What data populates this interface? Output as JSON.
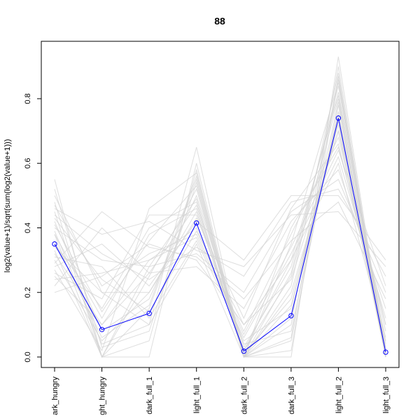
{
  "chart_data": {
    "type": "line",
    "title": "88",
    "xlabel": "",
    "ylabel": "log2(value+1)/sqrt(sum(log2(value+1)))",
    "categories": [
      "dark_hungry",
      "light_hungry",
      "dark_full_1",
      "light_full_1",
      "dark_full_2",
      "dark_full_3",
      "light_full_2",
      "light_full_3"
    ],
    "category_labels_shown": [
      "ark_hungry",
      "ght_hungry",
      "dark_full_1",
      "light_full_1",
      "dark_full_2",
      "dark_full_3",
      "light_full_2",
      "light_full_3"
    ],
    "ylim": [
      0.0,
      0.92
    ],
    "yticks": [
      0.0,
      0.2,
      0.4,
      0.6,
      0.8
    ],
    "ytick_labels": [
      "0.0",
      "0.2",
      "0.4",
      "0.6",
      "0.8"
    ],
    "highlight_series": {
      "values": [
        0.35,
        0.085,
        0.135,
        0.415,
        0.018,
        0.128,
        0.74,
        0.015
      ]
    },
    "background_series": [
      [
        0.38,
        0.0,
        0.25,
        0.52,
        0.0,
        0.2,
        0.7,
        0.0
      ],
      [
        0.3,
        0.05,
        0.2,
        0.45,
        0.02,
        0.25,
        0.8,
        0.0
      ],
      [
        0.45,
        0.0,
        0.15,
        0.55,
        0.0,
        0.35,
        0.85,
        0.02
      ],
      [
        0.25,
        0.1,
        0.3,
        0.4,
        0.05,
        0.15,
        0.75,
        0.0
      ],
      [
        0.5,
        0.2,
        0.1,
        0.35,
        0.0,
        0.4,
        0.65,
        0.1
      ],
      [
        0.2,
        0.25,
        0.35,
        0.3,
        0.1,
        0.3,
        0.6,
        0.05
      ],
      [
        0.55,
        0.0,
        0.05,
        0.58,
        0.0,
        0.1,
        0.9,
        0.0
      ],
      [
        0.4,
        0.3,
        0.28,
        0.32,
        0.2,
        0.45,
        0.55,
        0.2
      ],
      [
        0.35,
        0.15,
        0.4,
        0.48,
        0.0,
        0.05,
        0.78,
        0.0
      ],
      [
        0.28,
        0.35,
        0.22,
        0.42,
        0.3,
        0.5,
        0.5,
        0.3
      ],
      [
        0.42,
        0.08,
        0.18,
        0.5,
        0.03,
        0.28,
        0.82,
        0.01
      ],
      [
        0.33,
        0.0,
        0.0,
        0.6,
        0.0,
        0.0,
        0.93,
        0.0
      ],
      [
        0.47,
        0.22,
        0.32,
        0.38,
        0.08,
        0.38,
        0.68,
        0.08
      ],
      [
        0.22,
        0.4,
        0.26,
        0.28,
        0.15,
        0.42,
        0.58,
        0.15
      ],
      [
        0.38,
        0.12,
        0.38,
        0.46,
        0.01,
        0.18,
        0.72,
        0.0
      ],
      [
        0.31,
        0.28,
        0.12,
        0.36,
        0.06,
        0.32,
        0.62,
        0.12
      ],
      [
        0.52,
        0.03,
        0.08,
        0.54,
        0.0,
        0.22,
        0.88,
        0.0
      ],
      [
        0.26,
        0.18,
        0.44,
        0.44,
        0.04,
        0.08,
        0.76,
        0.03
      ],
      [
        0.44,
        0.32,
        0.24,
        0.34,
        0.25,
        0.48,
        0.52,
        0.25
      ],
      [
        0.36,
        0.06,
        0.16,
        0.56,
        0.0,
        0.26,
        0.84,
        0.0
      ],
      [
        0.29,
        0.45,
        0.34,
        0.31,
        0.18,
        0.36,
        0.48,
        0.18
      ],
      [
        0.48,
        0.0,
        0.28,
        0.49,
        0.0,
        0.12,
        0.79,
        0.0
      ],
      [
        0.34,
        0.2,
        0.2,
        0.43,
        0.12,
        0.46,
        0.66,
        0.06
      ],
      [
        0.41,
        0.14,
        0.36,
        0.53,
        0.0,
        0.02,
        0.86,
        0.0
      ],
      [
        0.24,
        0.26,
        0.3,
        0.37,
        0.07,
        0.34,
        0.64,
        0.22
      ],
      [
        0.39,
        0.04,
        0.1,
        0.65,
        0.0,
        0.16,
        0.73,
        0.0
      ],
      [
        0.46,
        0.38,
        0.42,
        0.33,
        0.28,
        0.44,
        0.45,
        0.28
      ],
      [
        0.32,
        0.1,
        0.26,
        0.47,
        0.02,
        0.3,
        0.81,
        0.04
      ],
      [
        0.43,
        0.24,
        0.14,
        0.39,
        0.1,
        0.24,
        0.7,
        0.1
      ],
      [
        0.27,
        0.02,
        0.46,
        0.57,
        0.0,
        0.06,
        0.87,
        0.0
      ]
    ],
    "colors": {
      "highlight": "#0000ff",
      "background": "#d3d3d3",
      "axis": "#000000",
      "plot_border": "#000000"
    },
    "grid": false
  }
}
